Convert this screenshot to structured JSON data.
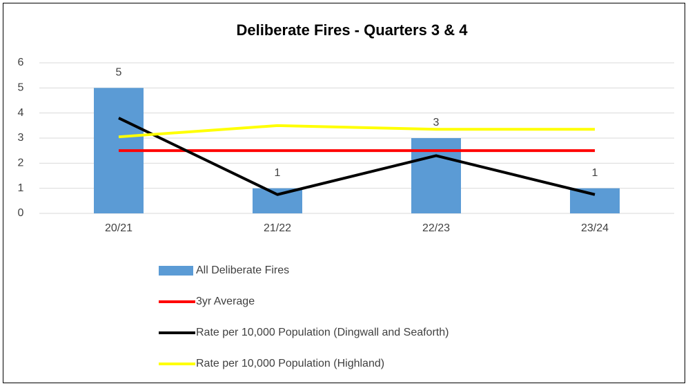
{
  "chart_data": {
    "type": "combo",
    "title": "Deliberate Fires - Quarters 3 & 4",
    "categories": [
      "20/21",
      "21/22",
      "22/23",
      "23/24"
    ],
    "series": [
      {
        "name": "All Deliberate Fires",
        "type": "bar",
        "color": "#5b9bd5",
        "values": [
          5,
          1,
          3,
          1
        ]
      },
      {
        "name": "3yr Average",
        "type": "line",
        "color": "#ff0000",
        "values": [
          2.5,
          2.5,
          2.5,
          2.5
        ]
      },
      {
        "name": "Rate per 10,000 Population (Dingwall and Seaforth)",
        "type": "line",
        "color": "#000000",
        "values": [
          3.8,
          0.75,
          2.3,
          0.75
        ]
      },
      {
        "name": "Rate per 10,000 Population (Highland)",
        "type": "line",
        "color": "#ffff00",
        "values": [
          3.05,
          3.5,
          3.35,
          3.35
        ]
      }
    ],
    "ylim": [
      0,
      6
    ],
    "yticks": [
      0,
      1,
      2,
      3,
      4,
      5,
      6
    ],
    "grid": true,
    "legend": "bottom"
  }
}
